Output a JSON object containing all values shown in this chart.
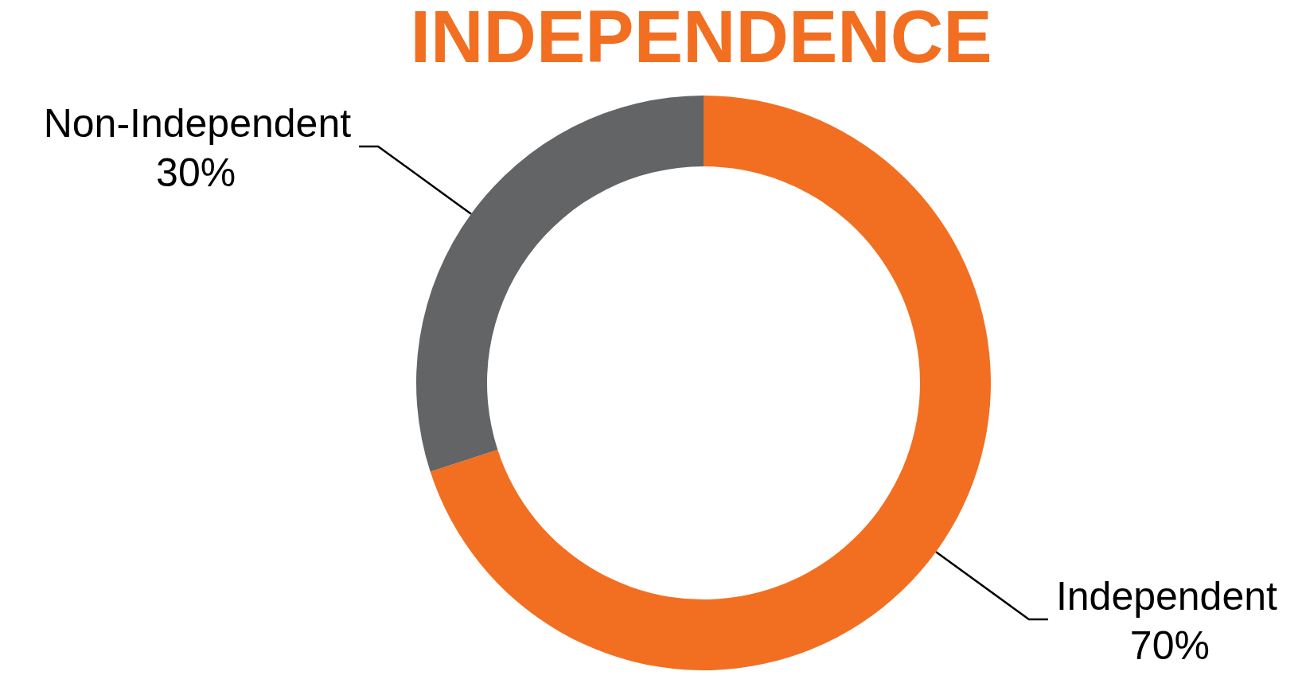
{
  "chart_data": {
    "type": "donut",
    "title": "INDEPENDENCE",
    "categories": [
      "Independent",
      "Non-Independent"
    ],
    "values": [
      70,
      30
    ],
    "colors": [
      "#f26f21",
      "#636466"
    ],
    "value_labels": [
      "70%",
      "30%"
    ]
  }
}
